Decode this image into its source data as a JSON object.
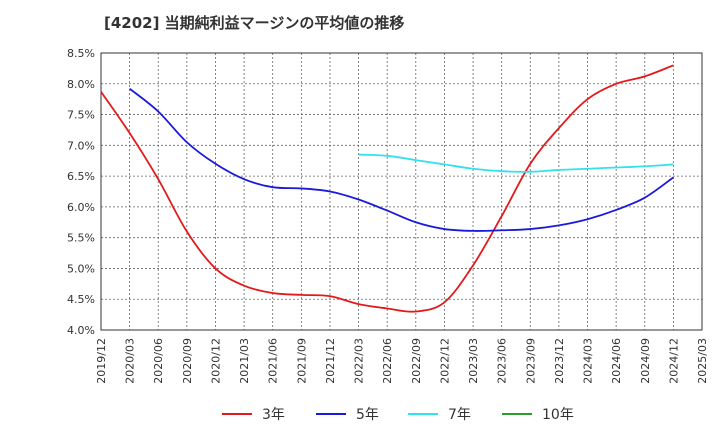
{
  "chart_data": {
    "type": "line",
    "title": "[4202]  当期純利益マージンの平均値の推移",
    "xlabel": "",
    "ylabel": "",
    "x_ticks": [
      "2019/12",
      "2020/03",
      "2020/06",
      "2020/09",
      "2020/12",
      "2021/03",
      "2021/06",
      "2021/09",
      "2021/12",
      "2022/03",
      "2022/06",
      "2022/09",
      "2022/12",
      "2023/03",
      "2023/06",
      "2023/09",
      "2023/12",
      "2024/03",
      "2024/06",
      "2024/09",
      "2024/12",
      "2025/03"
    ],
    "y_ticks": [
      "4.0%",
      "4.5%",
      "5.0%",
      "5.5%",
      "6.0%",
      "6.5%",
      "7.0%",
      "7.5%",
      "8.0%",
      "8.5%"
    ],
    "ylim": [
      4.0,
      8.5
    ],
    "grid": true,
    "legend_position": "bottom",
    "series": [
      {
        "name": "3年",
        "color": "#e31a1c",
        "x": [
          "2019/12",
          "2020/03",
          "2020/06",
          "2020/09",
          "2020/12",
          "2021/03",
          "2021/06",
          "2021/09",
          "2021/12",
          "2022/03",
          "2022/06",
          "2022/09",
          "2022/12",
          "2023/03",
          "2023/06",
          "2023/09",
          "2023/12",
          "2024/03",
          "2024/06",
          "2024/09",
          "2024/12"
        ],
        "values": [
          7.87,
          7.2,
          6.45,
          5.6,
          5.0,
          4.72,
          4.6,
          4.57,
          4.55,
          4.42,
          4.35,
          4.3,
          4.45,
          5.05,
          5.85,
          6.7,
          7.28,
          7.75,
          8.0,
          8.12,
          8.3
        ]
      },
      {
        "name": "5年",
        "color": "#1a1adb",
        "x": [
          "2020/03",
          "2020/06",
          "2020/09",
          "2020/12",
          "2021/03",
          "2021/06",
          "2021/09",
          "2021/12",
          "2022/03",
          "2022/06",
          "2022/09",
          "2022/12",
          "2023/03",
          "2023/06",
          "2023/09",
          "2023/12",
          "2024/03",
          "2024/06",
          "2024/09",
          "2024/12"
        ],
        "values": [
          7.92,
          7.55,
          7.05,
          6.7,
          6.45,
          6.32,
          6.3,
          6.25,
          6.12,
          5.94,
          5.75,
          5.64,
          5.61,
          5.62,
          5.64,
          5.7,
          5.8,
          5.95,
          6.15,
          6.48
        ]
      },
      {
        "name": "7年",
        "color": "#33e0ee",
        "x": [
          "2022/03",
          "2022/06",
          "2022/09",
          "2022/12",
          "2023/03",
          "2023/06",
          "2023/09",
          "2023/12",
          "2024/03",
          "2024/06",
          "2024/09",
          "2024/12"
        ],
        "values": [
          6.85,
          6.83,
          6.76,
          6.69,
          6.62,
          6.58,
          6.57,
          6.6,
          6.62,
          6.64,
          6.66,
          6.69
        ]
      },
      {
        "name": "10年",
        "color": "#2a9d2a",
        "x": [],
        "values": []
      }
    ]
  }
}
